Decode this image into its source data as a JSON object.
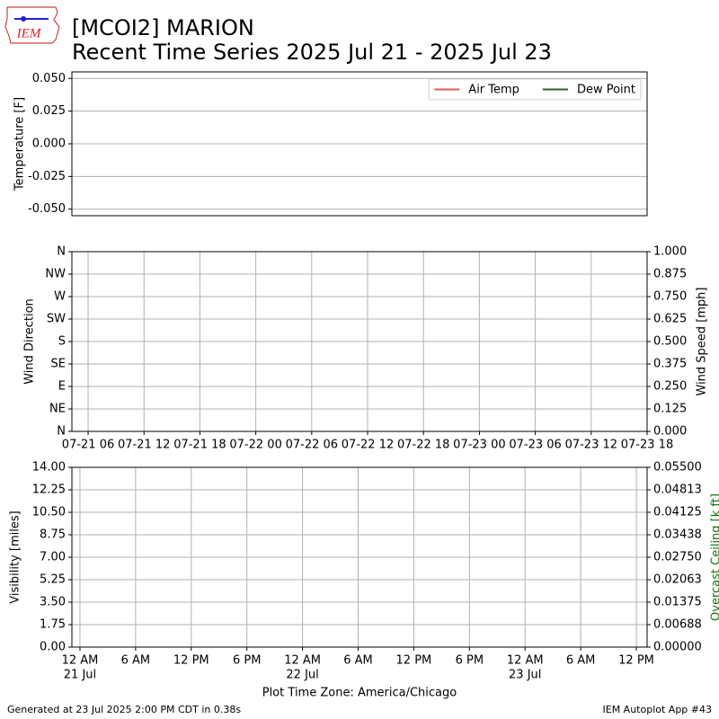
{
  "header": {
    "logo": "IEM",
    "title": "[MCOI2] MARION",
    "subtitle": "Recent Time Series 2025 Jul 21 - 2025 Jul 23"
  },
  "footer": {
    "left": "Generated at 23 Jul 2025 2:00 PM CDT in 0.38s",
    "right": "IEM Autoplot App #43"
  },
  "chart_data": [
    {
      "type": "line",
      "ylabel": "Temperature [F]",
      "grid": "y",
      "legend": "upper right",
      "x": [],
      "series": [
        {
          "name": "Air Temp",
          "color": "#d95f5f",
          "values": []
        },
        {
          "name": "Dew Point",
          "color": "#2f5f2f",
          "values": []
        }
      ],
      "xlim": [
        4.26,
        66
      ],
      "ylim": [
        -0.055,
        0.055
      ],
      "yticks": [
        {
          "value": -0.05,
          "label": "-0.050"
        },
        {
          "value": -0.025,
          "label": "-0.025"
        },
        {
          "value": 0,
          "label": "0.000"
        },
        {
          "value": 0.025,
          "label": "0.025"
        },
        {
          "value": 0.05,
          "label": "0.050"
        }
      ]
    },
    {
      "type": "line",
      "ylabel": "Wind Direction",
      "y2label": "Wind Speed [mph]",
      "grid": "both",
      "xlim": [
        4.26,
        66
      ],
      "xticks": [
        {
          "value": 6,
          "label": "07-21 06"
        },
        {
          "value": 12,
          "label": "07-21 12"
        },
        {
          "value": 18,
          "label": "07-21 18"
        },
        {
          "value": 24,
          "label": "07-22 00"
        },
        {
          "value": 30,
          "label": "07-22 06"
        },
        {
          "value": 36,
          "label": "07-22 12"
        },
        {
          "value": 42,
          "label": "07-22 18"
        },
        {
          "value": 48,
          "label": "07-23 00"
        },
        {
          "value": 54,
          "label": "07-23 06"
        },
        {
          "value": 60,
          "label": "07-23 12"
        },
        {
          "value": 66,
          "label": "07-23 18"
        }
      ],
      "ylim": [
        0,
        360
      ],
      "yticks": [
        {
          "value": 0,
          "label": "N"
        },
        {
          "value": 45,
          "label": "NE"
        },
        {
          "value": 90,
          "label": "E"
        },
        {
          "value": 135,
          "label": "SE"
        },
        {
          "value": 180,
          "label": "S"
        },
        {
          "value": 225,
          "label": "SW"
        },
        {
          "value": 270,
          "label": "W"
        },
        {
          "value": 315,
          "label": "NW"
        },
        {
          "value": 360,
          "label": "N"
        }
      ],
      "y2lim": [
        0,
        1
      ],
      "y2ticks": [
        {
          "value": 0,
          "label": "0.000"
        },
        {
          "value": 0.125,
          "label": "0.125"
        },
        {
          "value": 0.25,
          "label": "0.250"
        },
        {
          "value": 0.375,
          "label": "0.375"
        },
        {
          "value": 0.5,
          "label": "0.500"
        },
        {
          "value": 0.625,
          "label": "0.625"
        },
        {
          "value": 0.75,
          "label": "0.750"
        },
        {
          "value": 0.875,
          "label": "0.875"
        },
        {
          "value": 1,
          "label": "1.000"
        }
      ]
    },
    {
      "type": "line",
      "ylabel": "Visibility [miles]",
      "y2label": "Overcast Ceiling [k ft]",
      "y2label_color": "#008000",
      "xlabel": "Plot Time Zone: America/Chicago",
      "grid": "both",
      "xlim": [
        -0.87,
        61.16
      ],
      "xticks": [
        {
          "value": 0,
          "label": "12 AM"
        },
        {
          "value": 6,
          "label": "6 AM"
        },
        {
          "value": 12,
          "label": "12 PM"
        },
        {
          "value": 18,
          "label": "6 PM"
        },
        {
          "value": 24,
          "label": "12 AM"
        },
        {
          "value": 30,
          "label": "6 AM"
        },
        {
          "value": 36,
          "label": "12 PM"
        },
        {
          "value": 42,
          "label": "6 PM"
        },
        {
          "value": 48,
          "label": "12 AM"
        },
        {
          "value": 54,
          "label": "6 AM"
        },
        {
          "value": 60,
          "label": "12 PM"
        }
      ],
      "xdates": [
        {
          "value": 0,
          "label": "21 Jul"
        },
        {
          "value": 24,
          "label": "22 Jul"
        },
        {
          "value": 48,
          "label": "23 Jul"
        }
      ],
      "ylim": [
        0,
        14
      ],
      "yticks": [
        {
          "value": 0,
          "label": "0.00"
        },
        {
          "value": 1.75,
          "label": "1.75"
        },
        {
          "value": 3.5,
          "label": "3.50"
        },
        {
          "value": 5.25,
          "label": "5.25"
        },
        {
          "value": 7,
          "label": "7.00"
        },
        {
          "value": 8.75,
          "label": "8.75"
        },
        {
          "value": 10.5,
          "label": "10.50"
        },
        {
          "value": 12.25,
          "label": "12.25"
        },
        {
          "value": 14,
          "label": "14.00"
        }
      ],
      "y2lim": [
        0,
        0.055
      ],
      "y2ticks": [
        {
          "value": 0,
          "label": "0.00000"
        },
        {
          "value": 0.006875,
          "label": "0.00688"
        },
        {
          "value": 0.01375,
          "label": "0.01375"
        },
        {
          "value": 0.020625,
          "label": "0.02063"
        },
        {
          "value": 0.0275,
          "label": "0.02750"
        },
        {
          "value": 0.034375,
          "label": "0.03438"
        },
        {
          "value": 0.04125,
          "label": "0.04125"
        },
        {
          "value": 0.048125,
          "label": "0.04813"
        },
        {
          "value": 0.055,
          "label": "0.05500"
        }
      ]
    }
  ]
}
